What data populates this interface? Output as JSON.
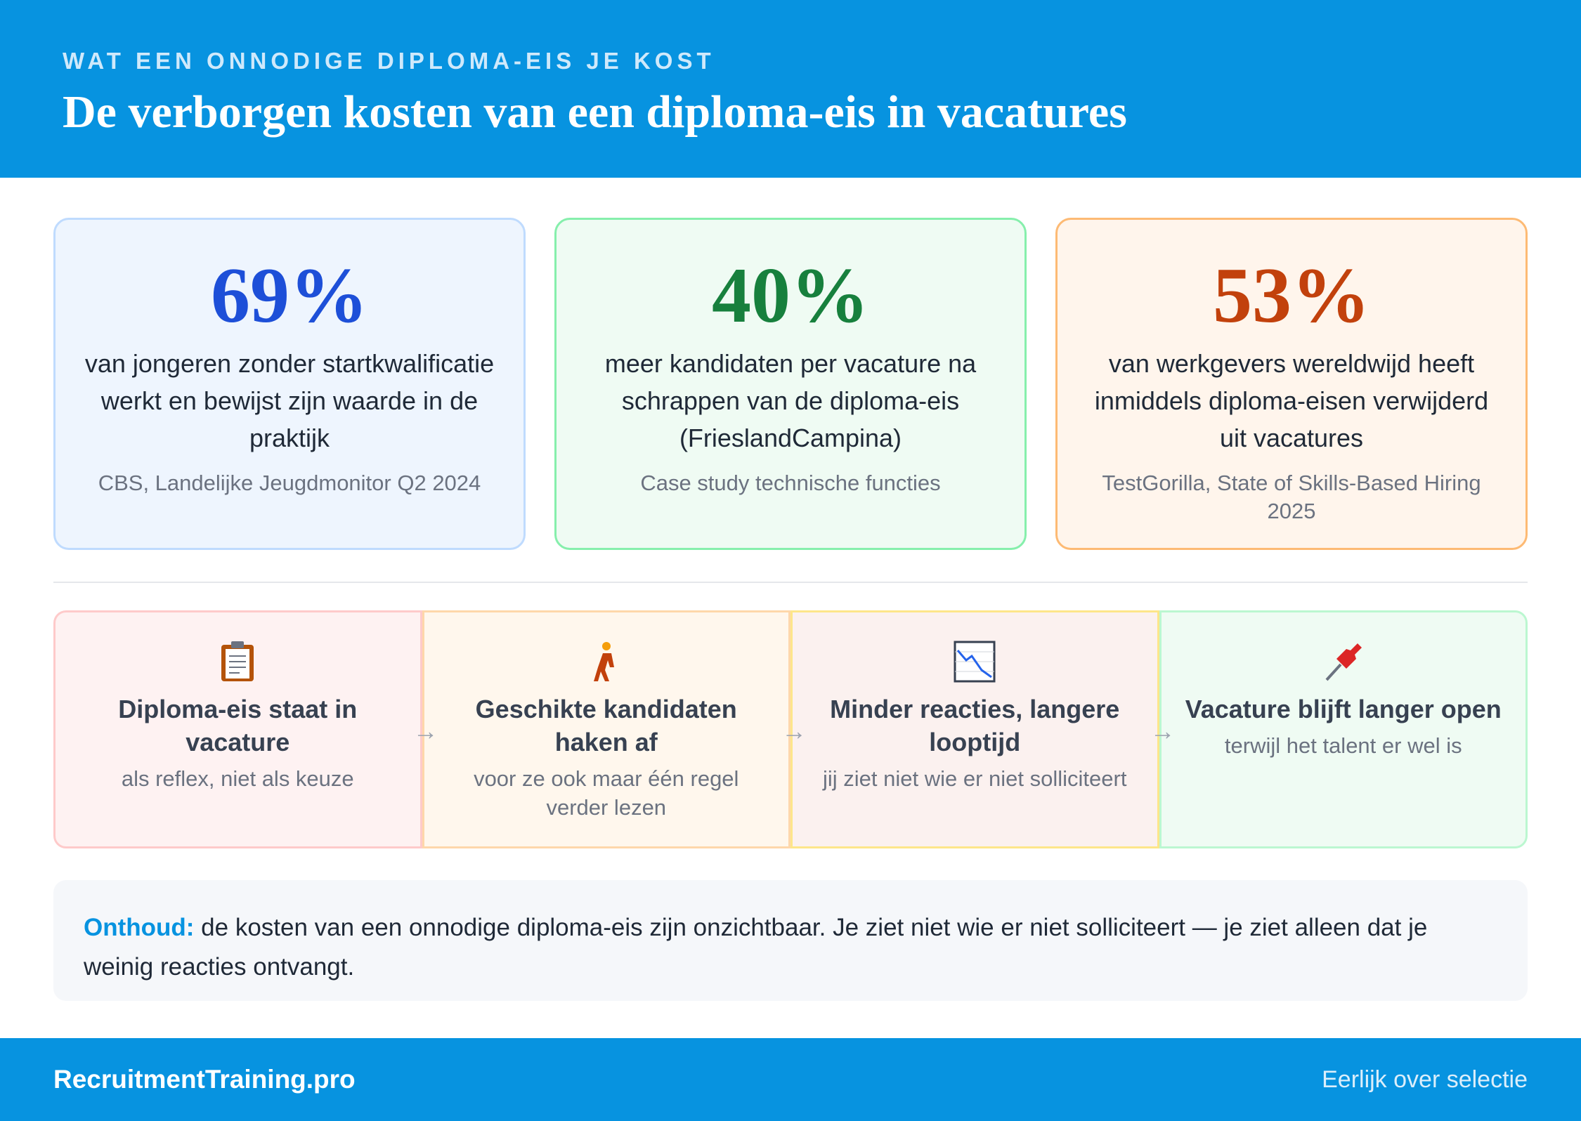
{
  "header": {
    "kicker": "WAT EEN ONNODIGE DIPLOMA-EIS JE KOST",
    "title": "De verborgen kosten van een diploma-eis in vacatures"
  },
  "stats": [
    {
      "value": "69%",
      "description": "van jongeren zonder startkwalificatie werkt en bewijst zijn waarde in de praktijk",
      "source": "CBS, Landelijke Jeugdmonitor Q2 2024"
    },
    {
      "value": "40%",
      "description": "meer kandidaten per vacature na schrappen van de diploma-eis (FrieslandCampina)",
      "source": "Case study technische functies"
    },
    {
      "value": "53%",
      "description": "van werkgevers wereldwijd heeft inmiddels diploma-eisen verwijderd uit vacatures",
      "source": "TestGorilla, State of Skills-Based Hiring 2025"
    }
  ],
  "steps": [
    {
      "title": "Diploma-eis staat in vacature",
      "subtitle": "als reflex, niet als keuze"
    },
    {
      "title": "Geschikte kandidaten haken af",
      "subtitle": "voor ze ook maar één regel verder lezen"
    },
    {
      "title": "Minder reacties, langere looptijd",
      "subtitle": "jij ziet niet wie er niet solliciteert"
    },
    {
      "title": "Vacature blijft langer open",
      "subtitle": "terwijl het talent er wel is"
    }
  ],
  "note": {
    "label": "Onthoud:",
    "text": "de kosten van een onnodige diploma-eis zijn onzichtbaar. Je ziet niet wie er niet solliciteert — je ziet alleen dat je weinig reacties ontvangt."
  },
  "footer": {
    "brand": "RecruitmentTraining.pro",
    "tagline": "Eerlijk over selectie"
  }
}
